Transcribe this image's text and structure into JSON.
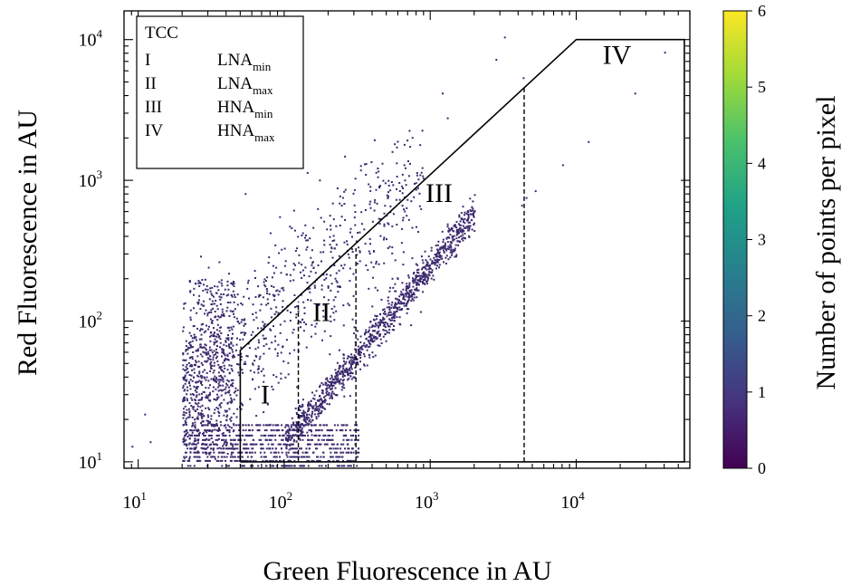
{
  "chart_data": {
    "type": "scatter",
    "xlabel": "Green Fluorescence in AU",
    "ylabel": "Red Fluorescence in AU",
    "xscale": "log",
    "yscale": "log",
    "xlim": [
      8,
      60000
    ],
    "ylim": [
      9,
      16000
    ],
    "xticks": [
      {
        "base": "10",
        "exp": "1",
        "value": 10
      },
      {
        "base": "10",
        "exp": "2",
        "value": 100
      },
      {
        "base": "10",
        "exp": "3",
        "value": 1000
      },
      {
        "base": "10",
        "exp": "4",
        "value": 10000
      }
    ],
    "yticks": [
      {
        "base": "10",
        "exp": "1",
        "value": 10
      },
      {
        "base": "10",
        "exp": "2",
        "value": 100
      },
      {
        "base": "10",
        "exp": "3",
        "value": 1000
      },
      {
        "base": "10",
        "exp": "4",
        "value": 10000
      }
    ],
    "grid": false,
    "gate_polygon": [
      [
        50,
        10
      ],
      [
        50,
        62
      ],
      [
        10000,
        10000
      ],
      [
        55000,
        10000
      ],
      [
        55000,
        10
      ],
      [
        50,
        10
      ]
    ],
    "gate_dividers": [
      {
        "x": 125,
        "y_top": 138
      },
      {
        "x": 310,
        "y_top": 330
      },
      {
        "x": 4400,
        "y_top": 4600
      }
    ],
    "regions": [
      {
        "label": "I",
        "x": 74,
        "y": 26
      },
      {
        "label": "II",
        "x": 180,
        "y": 100
      },
      {
        "label": "III",
        "x": 1150,
        "y": 700
      },
      {
        "label": "IV",
        "x": 19000,
        "y": 6700
      }
    ],
    "legend": {
      "title": "TCC",
      "placement": "top-left",
      "entries": [
        {
          "id": "I",
          "name": "LNA",
          "sub": "min"
        },
        {
          "id": "II",
          "name": "LNA",
          "sub": "max"
        },
        {
          "id": "III",
          "name": "HNA",
          "sub": "min"
        },
        {
          "id": "IV",
          "name": "HNA",
          "sub": "max"
        }
      ]
    },
    "colorbar": {
      "label": "Number of points per pixel",
      "min": 0,
      "max": 6,
      "ticks": [
        "0",
        "1",
        "2",
        "3",
        "4",
        "5",
        "6"
      ],
      "colors": [
        "#440154",
        "#46327e",
        "#365c8d",
        "#277f8e",
        "#1fa187",
        "#4ac16d",
        "#a0da39",
        "#fde725"
      ],
      "placement": "right"
    },
    "point_color": "#3b2a6e",
    "point_clusters": [
      {
        "name": "low_green_high_red",
        "x_range": [
          20,
          1000
        ],
        "y_center": "rising",
        "count": 900
      },
      {
        "name": "baseline_band",
        "x_range": [
          20,
          300
        ],
        "y_range": [
          9,
          20
        ],
        "count": 700
      },
      {
        "name": "diagonal_population",
        "x_from": [
          100,
          14
        ],
        "x_to": [
          2000,
          600
        ],
        "count": 1100
      },
      {
        "name": "sparse_outliers",
        "points": [
          [
            3200,
            10500
          ],
          [
            40000,
            8200
          ],
          [
            12000,
            1900
          ],
          [
            25000,
            4200
          ],
          [
            8000,
            1300
          ],
          [
            2800,
            7300
          ],
          [
            4300,
            5400
          ],
          [
            1200,
            4200
          ],
          [
            1300,
            2800
          ],
          [
            11,
            22
          ],
          [
            12,
            14
          ],
          [
            9,
            13
          ],
          [
            4500,
            760
          ],
          [
            5200,
            850
          ],
          [
            4200,
            670
          ]
        ]
      }
    ]
  }
}
